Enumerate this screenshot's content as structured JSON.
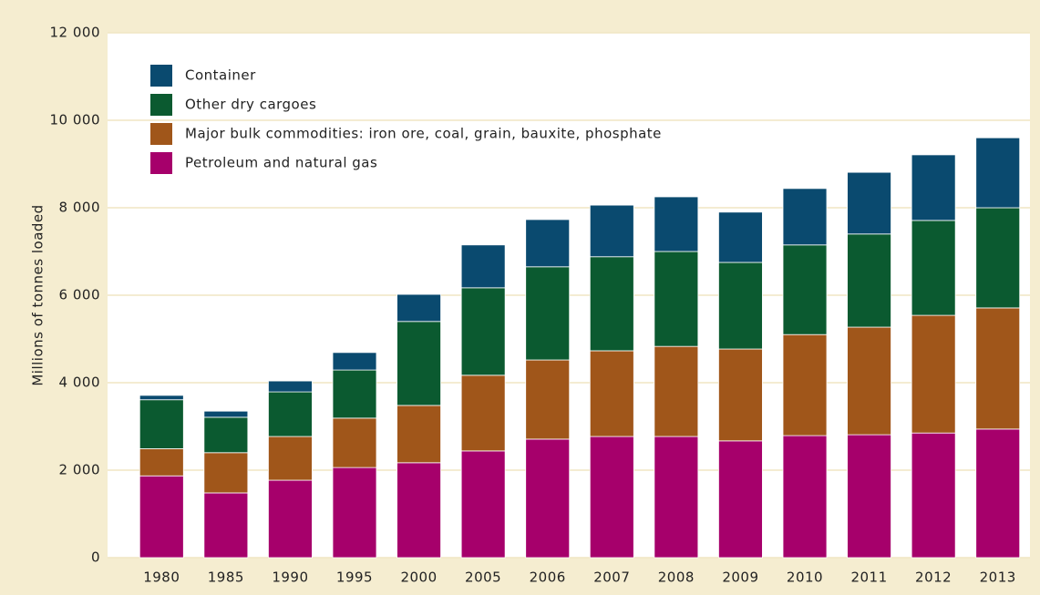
{
  "chart_data": {
    "type": "stacked_bar",
    "y_label": "Millions of tonnes loaded",
    "categories": [
      "1980",
      "1985",
      "1990",
      "1995",
      "2000",
      "2005",
      "2006",
      "2007",
      "2008",
      "2009",
      "2010",
      "2011",
      "2012",
      "2013"
    ],
    "series": [
      {
        "name": "Petroleum and natural gas",
        "color": "#a6006b",
        "values": [
          1870,
          1480,
          1770,
          2060,
          2170,
          2440,
          2710,
          2770,
          2770,
          2670,
          2790,
          2810,
          2850,
          2940
        ]
      },
      {
        "name": "Major bulk commodities: iron ore, coal, grain, bauxite, phosphate",
        "color": "#a0561a",
        "values": [
          620,
          920,
          1000,
          1130,
          1310,
          1730,
          1810,
          1960,
          2060,
          2100,
          2310,
          2460,
          2690,
          2770
        ]
      },
      {
        "name": "Other dry cargoes",
        "color": "#0b5a30",
        "values": [
          1120,
          810,
          1020,
          1100,
          1920,
          2000,
          2130,
          2150,
          2170,
          1980,
          2050,
          2130,
          2170,
          2290
        ]
      },
      {
        "name": "Container",
        "color": "#0a4a6f",
        "values": [
          100,
          140,
          250,
          400,
          620,
          980,
          1080,
          1180,
          1250,
          1150,
          1290,
          1410,
          1500,
          1600
        ]
      }
    ],
    "ylim": [
      0,
      12000
    ],
    "yticks": [
      0,
      {
        "value": 2000,
        "label": "2 000"
      },
      {
        "value": 4000,
        "label": "4 000"
      },
      {
        "value": 6000,
        "label": "6 000"
      },
      {
        "value": 8000,
        "label": "8 000"
      },
      {
        "value": 10000,
        "label": "10 000"
      },
      {
        "value": 12000,
        "label": "12 000"
      }
    ],
    "grid": true,
    "legend": "upper left"
  }
}
